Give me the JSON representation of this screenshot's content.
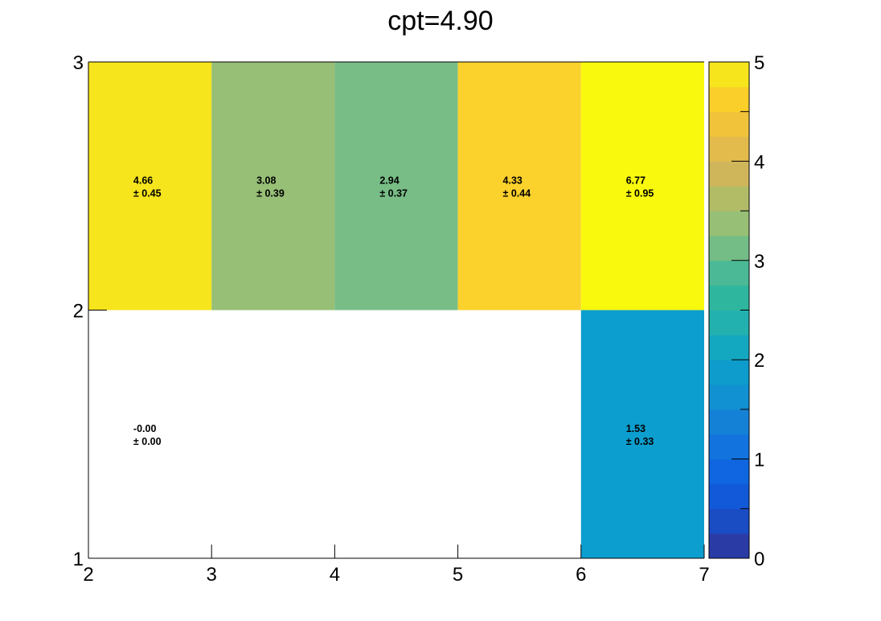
{
  "chart_data": {
    "type": "heatmap",
    "title": "cpt=4.90",
    "xlabel": "",
    "ylabel": "",
    "x_edges": [
      2,
      3,
      4,
      5,
      6,
      7
    ],
    "y_edges": [
      1,
      2,
      3
    ],
    "xlim": [
      2,
      7
    ],
    "ylim": [
      1,
      3
    ],
    "zlim": [
      0,
      5
    ],
    "x_ticks": [
      2,
      3,
      4,
      5,
      6,
      7
    ],
    "y_ticks": [
      1,
      2,
      3
    ],
    "z_ticks": [
      0,
      1,
      2,
      3,
      4,
      5
    ],
    "cells": [
      {
        "x": [
          2,
          3
        ],
        "y": [
          2,
          3
        ],
        "value": 4.66,
        "value_text": "4.66",
        "error_text": "± 0.45",
        "color": "#f6e51d"
      },
      {
        "x": [
          3,
          4
        ],
        "y": [
          2,
          3
        ],
        "value": 3.08,
        "value_text": "3.08",
        "error_text": "± 0.39",
        "color": "#97bf76"
      },
      {
        "x": [
          4,
          5
        ],
        "y": [
          2,
          3
        ],
        "value": 2.94,
        "value_text": "2.94",
        "error_text": "± 0.37",
        "color": "#78bd86"
      },
      {
        "x": [
          5,
          6
        ],
        "y": [
          2,
          3
        ],
        "value": 4.33,
        "value_text": "4.33",
        "error_text": "± 0.44",
        "color": "#fbd12c"
      },
      {
        "x": [
          6,
          7
        ],
        "y": [
          2,
          3
        ],
        "value": 6.77,
        "value_text": "6.77",
        "error_text": "± 0.95",
        "color": "#f9f90e"
      },
      {
        "x": [
          2,
          3
        ],
        "y": [
          1,
          2
        ],
        "value": -0.0,
        "value_text": "-0.00",
        "error_text": "± 0.00",
        "color": "#ffffff"
      },
      {
        "x": [
          6,
          7
        ],
        "y": [
          1,
          2
        ],
        "value": 1.53,
        "value_text": "1.53",
        "error_text": "± 0.33",
        "color": "#0c9ecf"
      }
    ],
    "palette": [
      "#2a3ba6",
      "#1a4cc4",
      "#1259d9",
      "#0f66e0",
      "#1273de",
      "#1481d7",
      "#1190d2",
      "#0d9ccb",
      "#14a8c0",
      "#22b1ae",
      "#2fb69e",
      "#4bb995",
      "#74bd86",
      "#97bf76",
      "#b2bc67",
      "#cfb65b",
      "#e3bb4d",
      "#f1c33a",
      "#fbcf2a",
      "#f6e51d"
    ]
  }
}
